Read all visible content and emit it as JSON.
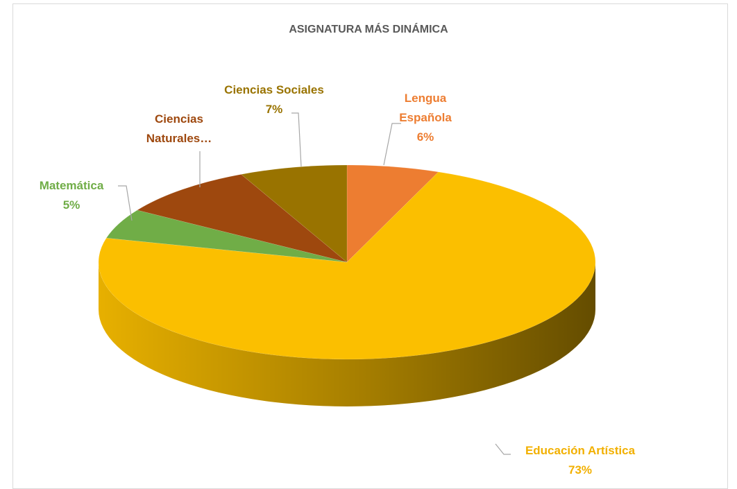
{
  "chart_data": {
    "type": "pie",
    "title": "ASIGNATURA MÁS DINÁMICA",
    "categories": [
      "Lengua Española",
      "Educación Artística",
      "Matemática",
      "Ciencias Naturales…",
      "Ciencias Sociales"
    ],
    "values": [
      6,
      73,
      5,
      9,
      7
    ],
    "value_labels": [
      "6%",
      "73%",
      "5%",
      null,
      "7%"
    ],
    "colors": [
      "#ed7d31",
      "#fbbf00",
      "#70ad47",
      "#9e480e",
      "#997300"
    ],
    "label_colors": [
      "#ed7d31",
      "#f2b000",
      "#70ad47",
      "#9e480e",
      "#997300"
    ]
  }
}
